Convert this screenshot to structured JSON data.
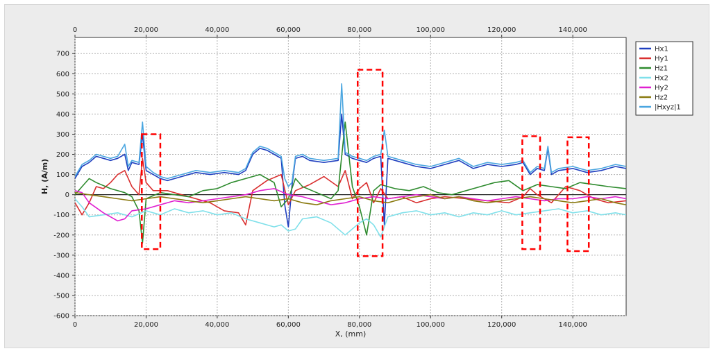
{
  "chart_data": {
    "type": "line",
    "xlabel": "X, (mm)",
    "ylabel": "H, (A/m)",
    "xlim": [
      0,
      155000
    ],
    "ylim": [
      -600,
      780
    ],
    "x_ticks": [
      0,
      20000,
      40000,
      60000,
      80000,
      100000,
      120000,
      140000
    ],
    "x_tick_labels": [
      "0",
      "20,000",
      "40,000",
      "60,000",
      "80,000",
      "100,000",
      "120,000",
      "140,000"
    ],
    "y_ticks": [
      700,
      600,
      500,
      400,
      300,
      200,
      100,
      0,
      -100,
      -200,
      -300,
      -400,
      -500,
      -600
    ],
    "y_tick_labels": [
      "700",
      "600",
      "500",
      "400",
      "300",
      "200",
      "100",
      "0",
      "-100",
      "-200",
      "-300",
      "-400",
      "-500",
      "-600"
    ],
    "grid": true,
    "legend_position": "right",
    "series": [
      {
        "name": "Hx1",
        "color": "#1f3fbf",
        "x": [
          0,
          2000,
          4000,
          6000,
          8000,
          10000,
          12000,
          14000,
          15000,
          16000,
          18000,
          19000,
          20000,
          22000,
          24000,
          26000,
          30000,
          34000,
          38000,
          42000,
          46000,
          48000,
          50000,
          52000,
          54000,
          56000,
          58000,
          59000,
          60000,
          61000,
          62000,
          64000,
          66000,
          70000,
          74000,
          75000,
          76000,
          78000,
          80000,
          82000,
          84000,
          86000,
          87000,
          88000,
          92000,
          96000,
          100000,
          104000,
          108000,
          112000,
          116000,
          120000,
          124000,
          126000,
          128000,
          130000,
          132000,
          133000,
          134000,
          136000,
          140000,
          144000,
          148000,
          152000,
          155000
        ],
        "values": [
          80,
          140,
          160,
          190,
          180,
          170,
          180,
          200,
          120,
          160,
          150,
          300,
          120,
          100,
          80,
          70,
          90,
          110,
          100,
          110,
          100,
          120,
          200,
          230,
          220,
          200,
          180,
          -50,
          -160,
          40,
          180,
          190,
          170,
          160,
          170,
          400,
          200,
          180,
          170,
          160,
          180,
          190,
          -150,
          180,
          160,
          140,
          130,
          150,
          170,
          130,
          150,
          140,
          150,
          160,
          100,
          130,
          120,
          230,
          100,
          120,
          130,
          110,
          120,
          140,
          130
        ]
      },
      {
        "name": "Hy1",
        "color": "#d93030",
        "x": [
          0,
          2000,
          4000,
          6000,
          8000,
          10000,
          12000,
          14000,
          16000,
          18000,
          19000,
          20000,
          22000,
          26000,
          30000,
          34000,
          38000,
          42000,
          46000,
          48000,
          50000,
          54000,
          58000,
          60000,
          62000,
          66000,
          70000,
          74000,
          76000,
          78000,
          80000,
          82000,
          84000,
          86000,
          88000,
          92000,
          96000,
          100000,
          104000,
          110000,
          116000,
          122000,
          126000,
          128000,
          130000,
          134000,
          138000,
          142000,
          146000,
          150000,
          155000
        ],
        "values": [
          -40,
          -100,
          -40,
          40,
          30,
          60,
          100,
          120,
          40,
          0,
          180,
          60,
          20,
          20,
          0,
          -20,
          -40,
          -80,
          -90,
          -150,
          20,
          70,
          100,
          -50,
          20,
          50,
          90,
          40,
          120,
          -20,
          30,
          60,
          -40,
          30,
          -20,
          -10,
          -40,
          -20,
          -10,
          -20,
          -30,
          -40,
          -10,
          30,
          0,
          -40,
          40,
          20,
          -20,
          -40,
          -30
        ]
      },
      {
        "name": "Hz1",
        "color": "#2e8b2e",
        "x": [
          0,
          2000,
          4000,
          6000,
          10000,
          14000,
          16000,
          18000,
          19000,
          20000,
          24000,
          28000,
          32000,
          36000,
          40000,
          44000,
          48000,
          52000,
          56000,
          58000,
          60000,
          62000,
          64000,
          68000,
          72000,
          74000,
          76000,
          78000,
          80000,
          82000,
          84000,
          86000,
          90000,
          94000,
          98000,
          102000,
          106000,
          110000,
          114000,
          118000,
          122000,
          126000,
          130000,
          134000,
          138000,
          142000,
          146000,
          150000,
          155000
        ],
        "values": [
          0,
          40,
          80,
          60,
          30,
          10,
          -10,
          -80,
          -240,
          -20,
          10,
          0,
          -10,
          20,
          30,
          60,
          80,
          100,
          60,
          -60,
          -20,
          80,
          40,
          10,
          -20,
          20,
          360,
          40,
          -60,
          -200,
          20,
          50,
          30,
          20,
          40,
          10,
          0,
          20,
          40,
          60,
          70,
          20,
          50,
          40,
          30,
          60,
          50,
          40,
          30
        ]
      },
      {
        "name": "Hx2",
        "color": "#7fe0ea",
        "x": [
          0,
          2000,
          4000,
          8000,
          12000,
          16000,
          20000,
          24000,
          28000,
          32000,
          36000,
          40000,
          44000,
          48000,
          52000,
          56000,
          58000,
          60000,
          62000,
          64000,
          68000,
          72000,
          76000,
          80000,
          82000,
          84000,
          86000,
          88000,
          92000,
          96000,
          100000,
          104000,
          108000,
          112000,
          116000,
          120000,
          124000,
          128000,
          132000,
          136000,
          140000,
          144000,
          148000,
          152000,
          155000
        ],
        "values": [
          -20,
          -60,
          -110,
          -100,
          -90,
          -110,
          -80,
          -100,
          -70,
          -90,
          -80,
          -100,
          -90,
          -120,
          -140,
          -160,
          -150,
          -180,
          -170,
          -120,
          -110,
          -140,
          -200,
          -140,
          -120,
          -150,
          -210,
          -110,
          -90,
          -80,
          -100,
          -90,
          -110,
          -90,
          -100,
          -80,
          -100,
          -90,
          -80,
          -70,
          -90,
          -80,
          -100,
          -90,
          -100
        ]
      },
      {
        "name": "Hy2",
        "color": "#e020d0",
        "x": [
          0,
          2000,
          4000,
          8000,
          12000,
          14000,
          16000,
          20000,
          24000,
          28000,
          32000,
          36000,
          40000,
          44000,
          48000,
          52000,
          56000,
          60000,
          64000,
          68000,
          72000,
          76000,
          80000,
          84000,
          88000,
          92000,
          96000,
          100000,
          104000,
          108000,
          112000,
          116000,
          120000,
          124000,
          128000,
          132000,
          136000,
          140000,
          144000,
          148000,
          152000,
          155000
        ],
        "values": [
          20,
          10,
          -40,
          -90,
          -130,
          -120,
          -80,
          -70,
          -50,
          -30,
          -40,
          -30,
          -20,
          -10,
          0,
          20,
          30,
          0,
          -10,
          -30,
          -50,
          -40,
          -20,
          -10,
          -20,
          -10,
          0,
          -10,
          -20,
          -10,
          -20,
          -30,
          -20,
          -10,
          -20,
          -30,
          -20,
          -20,
          -10,
          -20,
          -10,
          -20
        ]
      },
      {
        "name": "Hz2",
        "color": "#8a7a10",
        "x": [
          0,
          4000,
          8000,
          12000,
          16000,
          20000,
          24000,
          28000,
          32000,
          36000,
          40000,
          44000,
          48000,
          52000,
          56000,
          60000,
          64000,
          68000,
          72000,
          76000,
          80000,
          84000,
          88000,
          92000,
          96000,
          100000,
          104000,
          108000,
          112000,
          116000,
          120000,
          124000,
          128000,
          132000,
          136000,
          140000,
          144000,
          148000,
          152000,
          155000
        ],
        "values": [
          10,
          0,
          -10,
          -20,
          -30,
          -20,
          -10,
          -20,
          -30,
          -40,
          -30,
          -20,
          -10,
          -20,
          -30,
          -20,
          -40,
          -50,
          -30,
          -20,
          -10,
          -30,
          -40,
          -20,
          -10,
          0,
          -20,
          -10,
          -30,
          -40,
          -30,
          -20,
          -10,
          -20,
          -30,
          -40,
          -30,
          -20,
          -40,
          -50
        ]
      },
      {
        "name": "|Hxyz|1",
        "color": "#4aa6e0",
        "x": [
          0,
          2000,
          4000,
          6000,
          8000,
          10000,
          12000,
          14000,
          15000,
          16000,
          18000,
          19000,
          20000,
          22000,
          24000,
          26000,
          30000,
          34000,
          38000,
          42000,
          46000,
          48000,
          50000,
          52000,
          54000,
          56000,
          58000,
          59000,
          60000,
          61000,
          62000,
          64000,
          66000,
          70000,
          74000,
          75000,
          76000,
          78000,
          80000,
          82000,
          84000,
          86000,
          87000,
          88000,
          92000,
          96000,
          100000,
          104000,
          108000,
          112000,
          116000,
          120000,
          124000,
          126000,
          128000,
          130000,
          132000,
          133000,
          134000,
          136000,
          140000,
          144000,
          148000,
          152000,
          155000
        ],
        "values": [
          90,
          150,
          170,
          200,
          190,
          180,
          190,
          250,
          140,
          170,
          160,
          360,
          140,
          110,
          90,
          80,
          100,
          120,
          110,
          120,
          110,
          130,
          210,
          240,
          230,
          210,
          190,
          80,
          40,
          60,
          190,
          200,
          180,
          170,
          180,
          550,
          210,
          190,
          180,
          170,
          190,
          200,
          320,
          190,
          170,
          150,
          140,
          160,
          180,
          140,
          160,
          150,
          160,
          170,
          110,
          140,
          130,
          240,
          110,
          130,
          140,
          120,
          130,
          150,
          140
        ]
      }
    ],
    "annotations": [
      {
        "type": "dashed-box",
        "x": [
          18800,
          24000
        ],
        "y": [
          -270,
          300
        ],
        "color": "#ff0000"
      },
      {
        "type": "dashed-box",
        "x": [
          79500,
          86500
        ],
        "y": [
          -305,
          620
        ],
        "color": "#ff0000"
      },
      {
        "type": "dashed-box",
        "x": [
          125800,
          130800
        ],
        "y": [
          -270,
          290
        ],
        "color": "#ff0000"
      },
      {
        "type": "dashed-box",
        "x": [
          138500,
          144500
        ],
        "y": [
          -280,
          285
        ],
        "color": "#ff0000"
      }
    ]
  }
}
